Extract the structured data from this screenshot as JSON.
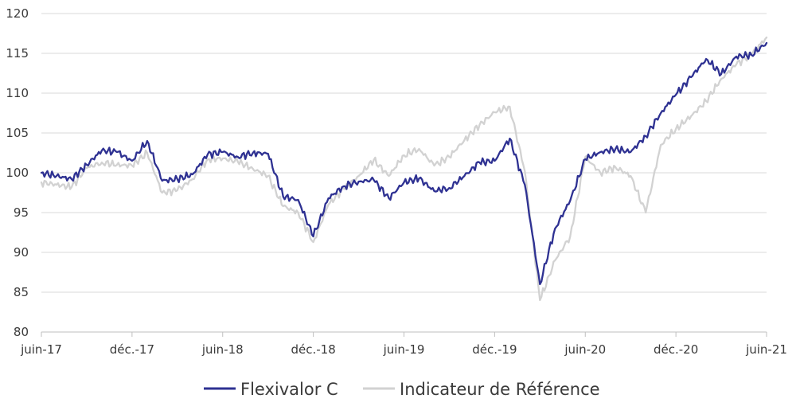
{
  "chart_data": {
    "type": "line",
    "title": "",
    "xlabel": "",
    "ylabel": "",
    "ylim": [
      80,
      120
    ],
    "yticks": [
      80,
      85,
      90,
      95,
      100,
      105,
      110,
      115,
      120
    ],
    "x_tick_labels": [
      "juin-17",
      "déc.-17",
      "juin-18",
      "déc.-18",
      "juin-19",
      "déc.-19",
      "juin-20",
      "déc.-20",
      "juin-21"
    ],
    "x_range": [
      "2017-06",
      "2021-06"
    ],
    "grid": "horizontal",
    "legend_position": "bottom",
    "series": [
      {
        "name": "Flexivalor C",
        "color": "#2e3192",
        "x": [
          "2017-06",
          "2017-07",
          "2017-08",
          "2017-09",
          "2017-10",
          "2017-11",
          "2017-12",
          "2018-01",
          "2018-02",
          "2018-03",
          "2018-04",
          "2018-05",
          "2018-06",
          "2018-07",
          "2018-08",
          "2018-09",
          "2018-10",
          "2018-11",
          "2018-12",
          "2019-01",
          "2019-02",
          "2019-03",
          "2019-04",
          "2019-05",
          "2019-06",
          "2019-07",
          "2019-08",
          "2019-09",
          "2019-10",
          "2019-11",
          "2019-12",
          "2020-01",
          "2020-02",
          "2020-03",
          "2020-04",
          "2020-05",
          "2020-06",
          "2020-07",
          "2020-08",
          "2020-09",
          "2020-10",
          "2020-11",
          "2020-12",
          "2021-01",
          "2021-02",
          "2021-03",
          "2021-04",
          "2021-05",
          "2021-06"
        ],
        "values": [
          100,
          99.6,
          99.2,
          101.0,
          102.8,
          102.6,
          101.5,
          104.0,
          99.0,
          99.2,
          99.8,
          102.3,
          102.6,
          102.0,
          102.5,
          102.4,
          97.0,
          96.6,
          92.0,
          96.8,
          98.3,
          98.9,
          99.1,
          96.8,
          98.8,
          99.3,
          97.7,
          98.1,
          99.6,
          101.3,
          101.5,
          104.3,
          98.5,
          86.0,
          93.0,
          96.5,
          101.7,
          102.6,
          103.0,
          102.6,
          104.6,
          107.5,
          109.8,
          112.0,
          114.3,
          112.4,
          114.6,
          114.8,
          116.3
        ]
      },
      {
        "name": "Indicateur de Référence",
        "color": "#d2d2d2",
        "x": [
          "2017-06",
          "2017-07",
          "2017-08",
          "2017-09",
          "2017-10",
          "2017-11",
          "2017-12",
          "2018-01",
          "2018-02",
          "2018-03",
          "2018-04",
          "2018-05",
          "2018-06",
          "2018-07",
          "2018-08",
          "2018-09",
          "2018-10",
          "2018-11",
          "2018-12",
          "2019-01",
          "2019-02",
          "2019-03",
          "2019-04",
          "2019-05",
          "2019-06",
          "2019-07",
          "2019-08",
          "2019-09",
          "2019-10",
          "2019-11",
          "2019-12",
          "2020-01",
          "2020-02",
          "2020-03",
          "2020-04",
          "2020-05",
          "2020-06",
          "2020-07",
          "2020-08",
          "2020-09",
          "2020-10",
          "2020-11",
          "2020-12",
          "2021-01",
          "2021-02",
          "2021-03",
          "2021-04",
          "2021-05",
          "2021-06"
        ],
        "values": [
          98.8,
          98.5,
          98.2,
          100.6,
          101.3,
          101.0,
          100.9,
          102.5,
          97.5,
          97.8,
          99.2,
          101.7,
          101.8,
          101.4,
          100.5,
          99.6,
          95.8,
          95.0,
          91.3,
          96.0,
          98.0,
          99.6,
          101.6,
          99.6,
          102.2,
          103.0,
          100.9,
          102.0,
          104.1,
          106.0,
          107.6,
          108.3,
          100.2,
          84.0,
          89.0,
          92.0,
          102.0,
          100.0,
          100.7,
          99.6,
          95.0,
          103.5,
          105.5,
          107.1,
          109.0,
          111.8,
          113.6,
          114.9,
          117.0
        ]
      }
    ]
  }
}
